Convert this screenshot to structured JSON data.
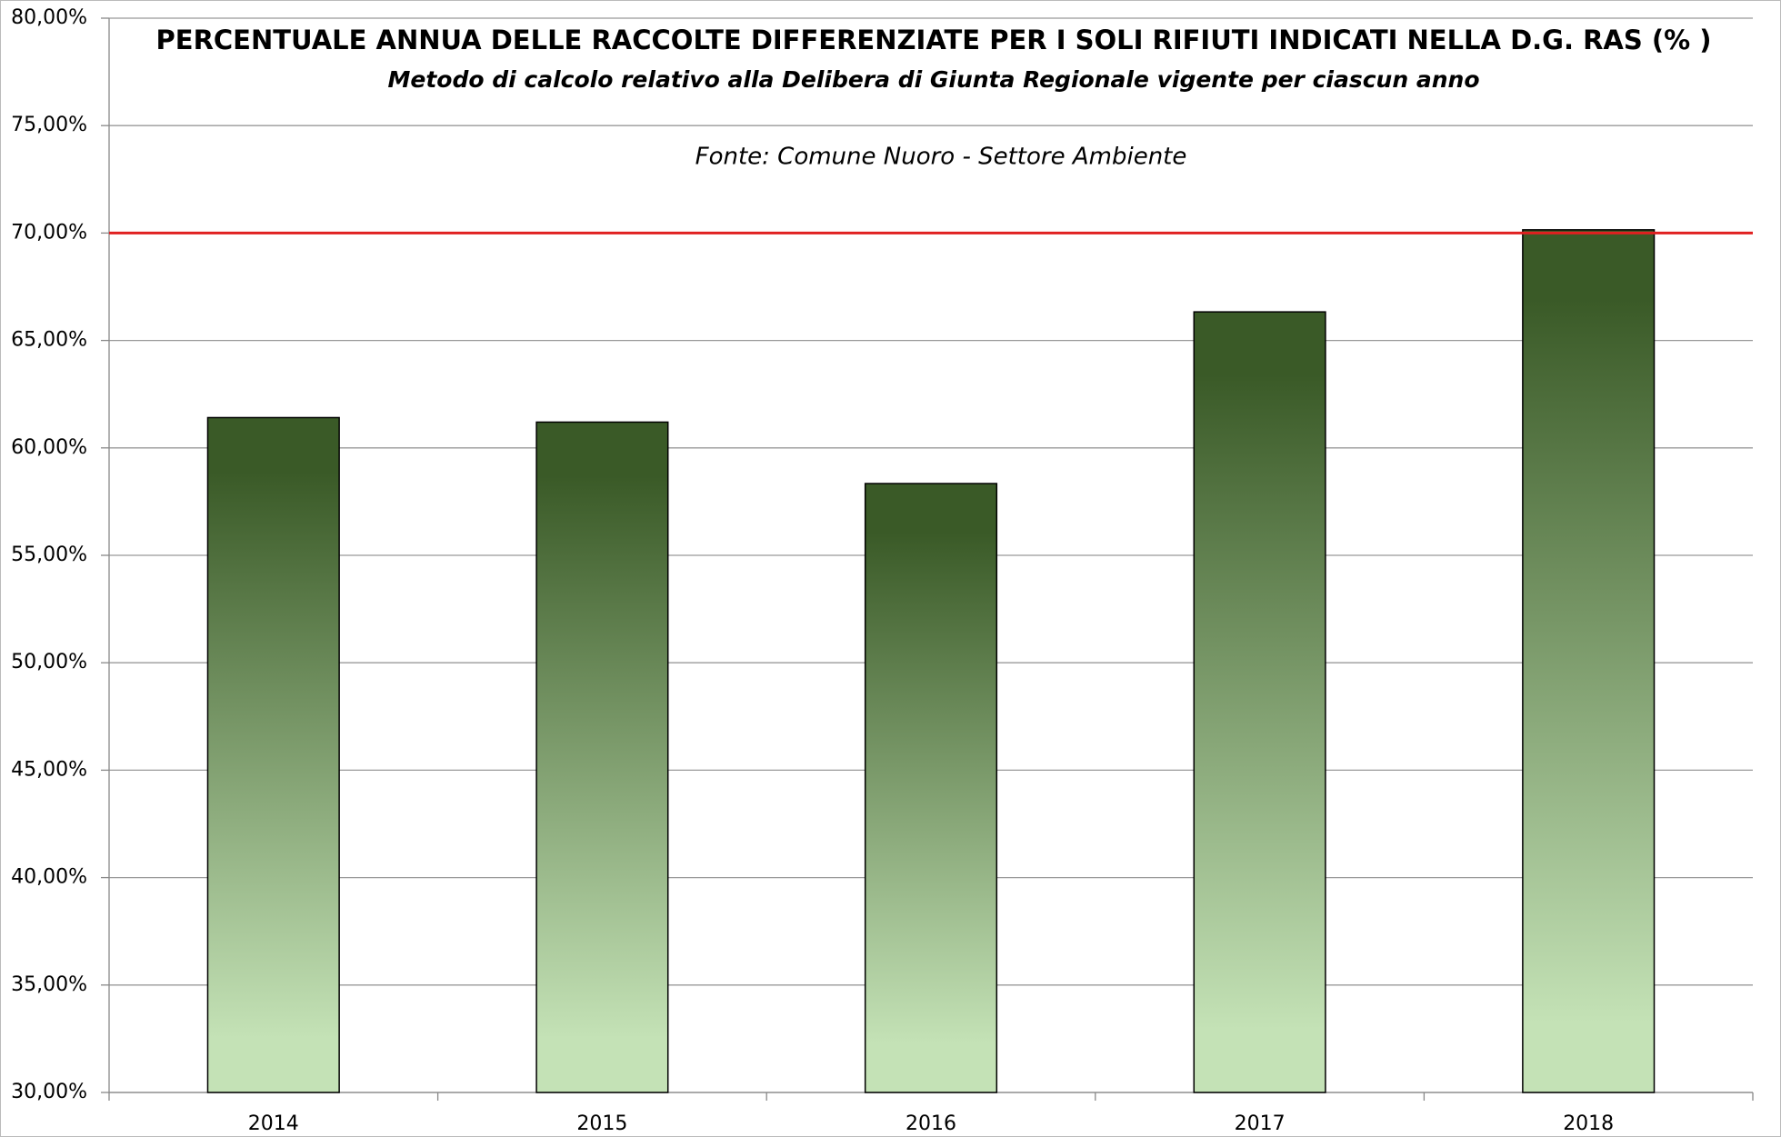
{
  "chart_data": {
    "type": "bar",
    "title": "PERCENTUALE ANNUA DELLE RACCOLTE DIFFERENZIATE PER I SOLI RIFIUTI INDICATI NELLA D.G. RAS (% )",
    "subtitle": "Metodo di calcolo relativo alla Delibera di Giunta Regionale vigente per ciascun anno",
    "source": "Fonte: Comune Nuoro - Settore Ambiente",
    "categories": [
      "2014",
      "2015",
      "2016",
      "2017",
      "2018"
    ],
    "values": [
      61.41,
      61.2,
      58.34,
      66.33,
      70.15
    ],
    "color": [
      "#3a5a27",
      "#c4e2b6"
    ],
    "reference_line": {
      "value": 70,
      "color": "#e02020"
    },
    "ylim": [
      30,
      80
    ],
    "yticks": [
      {
        "value": 30,
        "label": "30,00%"
      },
      {
        "value": 35,
        "label": "35,00%"
      },
      {
        "value": 40,
        "label": "40,00%"
      },
      {
        "value": 45,
        "label": "45,00%"
      },
      {
        "value": 50,
        "label": "50,00%"
      },
      {
        "value": 55,
        "label": "55,00%"
      },
      {
        "value": 60,
        "label": "60,00%"
      },
      {
        "value": 65,
        "label": "65,00%"
      },
      {
        "value": 70,
        "label": "70,00%"
      },
      {
        "value": 75,
        "label": "75,00%"
      },
      {
        "value": 80,
        "label": "80,00%"
      }
    ],
    "grid": true
  }
}
